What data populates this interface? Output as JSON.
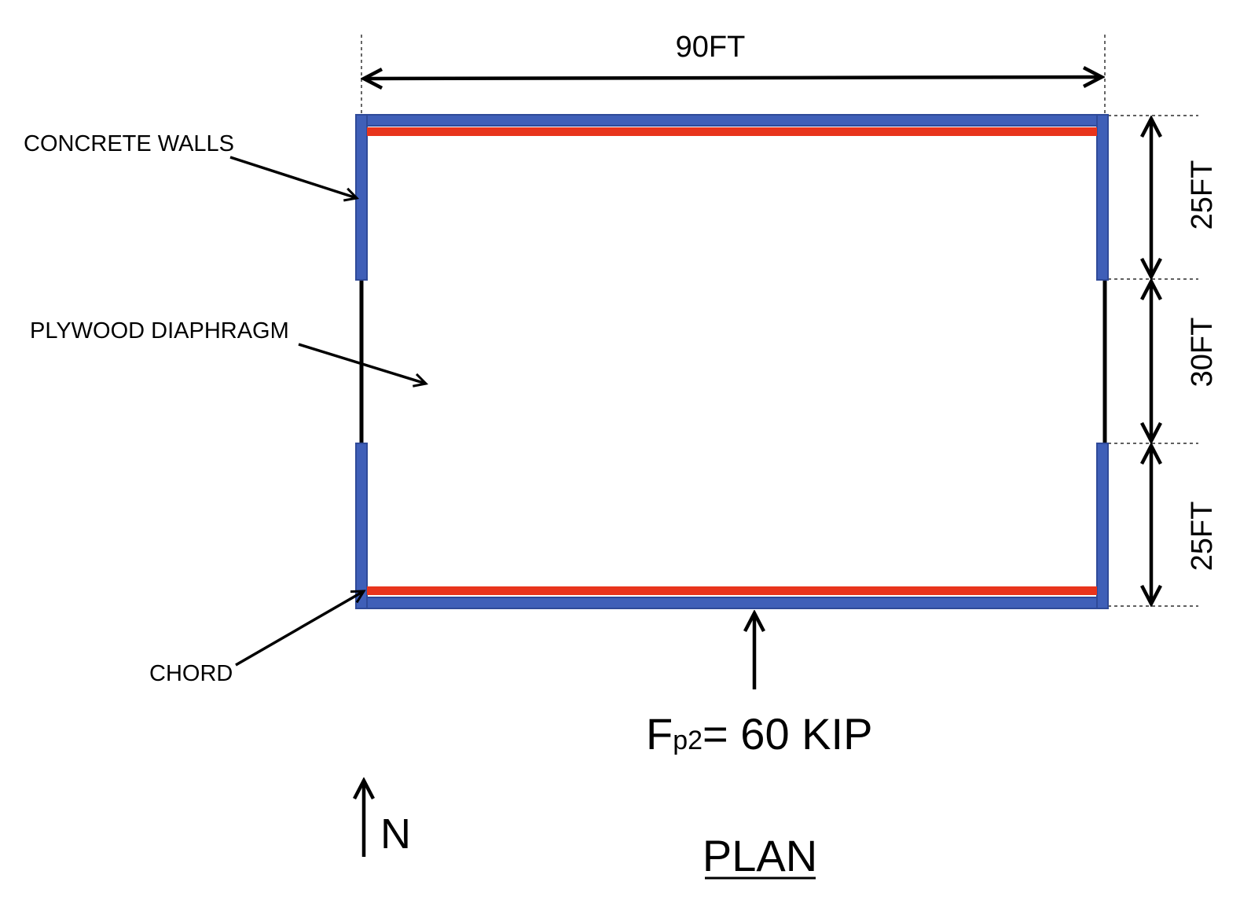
{
  "dimensions": {
    "width_label": "90FT",
    "segments": [
      "25FT",
      "30FT",
      "25FT"
    ]
  },
  "callouts": {
    "concrete_walls": "CONCRETE WALLS",
    "plywood_diaphragm": "PLYWOOD DIAPHRAGM",
    "chord": "CHORD"
  },
  "load": {
    "symbol": "F",
    "subscript": "p2",
    "value": "= 60 KIP"
  },
  "north_label": "N",
  "plan_title": "PLAN",
  "colors": {
    "wall": "#3f5fb8",
    "wall_border": "#2f4a99",
    "chord": "#e8341c",
    "line": "#000000"
  }
}
